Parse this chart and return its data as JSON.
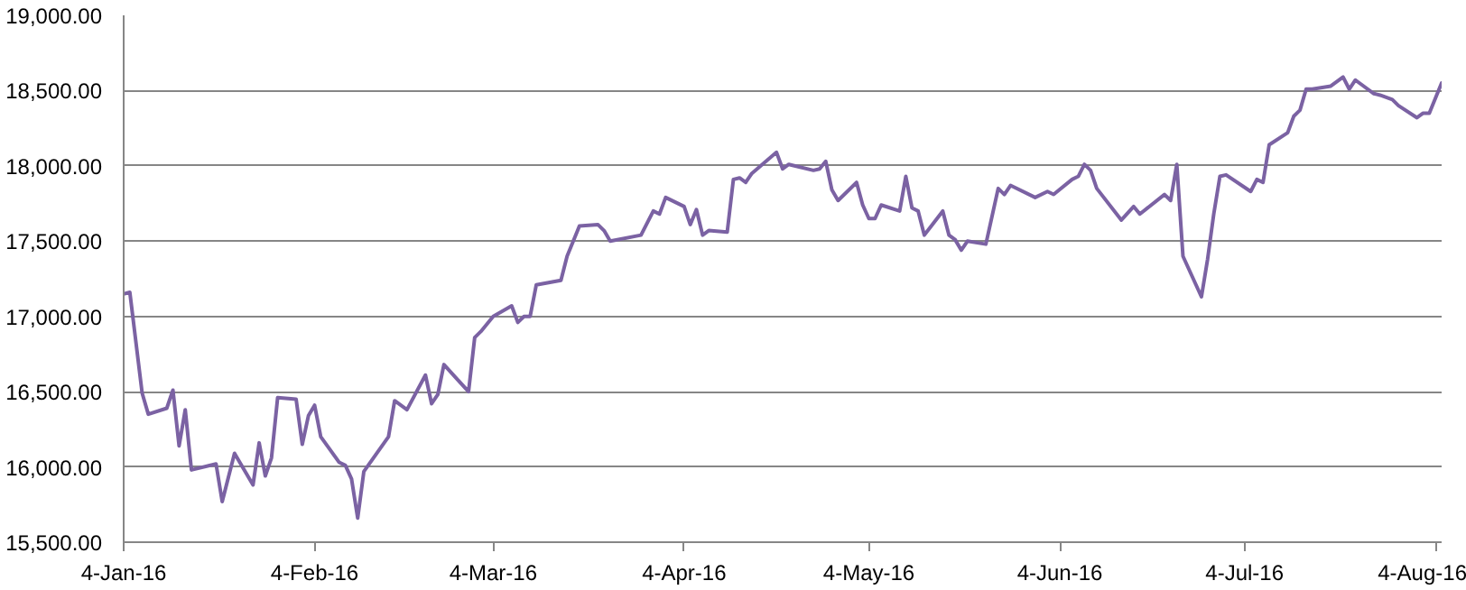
{
  "chart_data": {
    "type": "line",
    "color": "#7b62a3",
    "grid": "y",
    "marker": "none",
    "line_style": "solid",
    "xlim": [
      "2016-01-04",
      "2016-08-05"
    ],
    "xticks": [
      {
        "value": "2016-01-04",
        "label": "4-Jan-16"
      },
      {
        "value": "2016-02-04",
        "label": "4-Feb-16"
      },
      {
        "value": "2016-03-04",
        "label": "4-Mar-16"
      },
      {
        "value": "2016-04-04",
        "label": "4-Apr-16"
      },
      {
        "value": "2016-05-04",
        "label": "4-May-16"
      },
      {
        "value": "2016-06-04",
        "label": "4-Jun-16"
      },
      {
        "value": "2016-07-04",
        "label": "4-Jul-16"
      },
      {
        "value": "2016-08-04",
        "label": "4-Aug-16"
      }
    ],
    "ylim": [
      15500,
      19000
    ],
    "yticks": [
      {
        "value": 15500,
        "label": "15,500.00"
      },
      {
        "value": 16000,
        "label": "16,000.00"
      },
      {
        "value": 16500,
        "label": "16,500.00"
      },
      {
        "value": 17000,
        "label": "17,000.00"
      },
      {
        "value": 17500,
        "label": "17,500.00"
      },
      {
        "value": 18000,
        "label": "18,000.00"
      },
      {
        "value": 18500,
        "label": "18,500.00"
      },
      {
        "value": 19000,
        "label": "19,000.00"
      }
    ],
    "x": [
      "2016-01-04",
      "2016-01-05",
      "2016-01-07",
      "2016-01-08",
      "2016-01-11",
      "2016-01-12",
      "2016-01-13",
      "2016-01-14",
      "2016-01-15",
      "2016-01-19",
      "2016-01-20",
      "2016-01-22",
      "2016-01-25",
      "2016-01-26",
      "2016-01-27",
      "2016-01-28",
      "2016-01-29",
      "2016-02-01",
      "2016-02-02",
      "2016-02-03",
      "2016-02-04",
      "2016-02-05",
      "2016-02-08",
      "2016-02-09",
      "2016-02-10",
      "2016-02-11",
      "2016-02-12",
      "2016-02-16",
      "2016-02-17",
      "2016-02-19",
      "2016-02-22",
      "2016-02-23",
      "2016-02-24",
      "2016-02-25",
      "2016-02-29",
      "2016-03-01",
      "2016-03-02",
      "2016-03-04",
      "2016-03-07",
      "2016-03-08",
      "2016-03-09",
      "2016-03-10",
      "2016-03-11",
      "2016-03-15",
      "2016-03-16",
      "2016-03-18",
      "2016-03-21",
      "2016-03-22",
      "2016-03-23",
      "2016-03-28",
      "2016-03-30",
      "2016-03-31",
      "2016-04-01",
      "2016-04-04",
      "2016-04-05",
      "2016-04-06",
      "2016-04-07",
      "2016-04-08",
      "2016-04-11",
      "2016-04-12",
      "2016-04-13",
      "2016-04-14",
      "2016-04-15",
      "2016-04-19",
      "2016-04-20",
      "2016-04-21",
      "2016-04-25",
      "2016-04-26",
      "2016-04-27",
      "2016-04-28",
      "2016-04-29",
      "2016-05-02",
      "2016-05-03",
      "2016-05-04",
      "2016-05-05",
      "2016-05-06",
      "2016-05-09",
      "2016-05-10",
      "2016-05-11",
      "2016-05-12",
      "2016-05-13",
      "2016-05-16",
      "2016-05-17",
      "2016-05-18",
      "2016-05-19",
      "2016-05-20",
      "2016-05-23",
      "2016-05-25",
      "2016-05-26",
      "2016-05-27",
      "2016-05-31",
      "2016-06-02",
      "2016-06-03",
      "2016-06-06",
      "2016-06-07",
      "2016-06-08",
      "2016-06-09",
      "2016-06-10",
      "2016-06-14",
      "2016-06-16",
      "2016-06-17",
      "2016-06-21",
      "2016-06-22",
      "2016-06-23",
      "2016-06-24",
      "2016-06-27",
      "2016-06-28",
      "2016-06-29",
      "2016-06-30",
      "2016-07-01",
      "2016-07-05",
      "2016-07-06",
      "2016-07-07",
      "2016-07-08",
      "2016-07-11",
      "2016-07-12",
      "2016-07-13",
      "2016-07-14",
      "2016-07-15",
      "2016-07-18",
      "2016-07-20",
      "2016-07-21",
      "2016-07-22",
      "2016-07-25",
      "2016-07-26",
      "2016-07-28",
      "2016-07-29",
      "2016-08-01",
      "2016-08-02",
      "2016-08-03",
      "2016-08-05"
    ],
    "values": [
      17150,
      17160,
      16490,
      16350,
      16390,
      16510,
      16140,
      16380,
      15980,
      16020,
      15770,
      16090,
      15880,
      16160,
      15940,
      16060,
      16460,
      16450,
      16150,
      16340,
      16410,
      16200,
      16030,
      16010,
      15920,
      15660,
      15970,
      16200,
      16440,
      16380,
      16610,
      16420,
      16480,
      16680,
      16500,
      16860,
      16900,
      17000,
      17070,
      16960,
      17000,
      17000,
      17210,
      17240,
      17400,
      17600,
      17610,
      17570,
      17500,
      17540,
      17700,
      17680,
      17790,
      17730,
      17610,
      17710,
      17540,
      17570,
      17560,
      17910,
      17920,
      17890,
      17950,
      18090,
      17980,
      18010,
      17970,
      17980,
      18030,
      17840,
      17770,
      17890,
      17740,
      17650,
      17650,
      17740,
      17700,
      17930,
      17720,
      17700,
      17540,
      17700,
      17540,
      17510,
      17440,
      17500,
      17480,
      17850,
      17810,
      17870,
      17790,
      17830,
      17810,
      17910,
      17930,
      18010,
      17970,
      17850,
      17640,
      17730,
      17680,
      17810,
      17770,
      18010,
      17400,
      17130,
      17380,
      17680,
      17930,
      17940,
      17830,
      17910,
      17890,
      18140,
      18220,
      18330,
      18370,
      18510,
      18510,
      18530,
      18590,
      18510,
      18570,
      18480,
      18470,
      18440,
      18400,
      18320,
      18350,
      18350,
      18550
    ]
  }
}
